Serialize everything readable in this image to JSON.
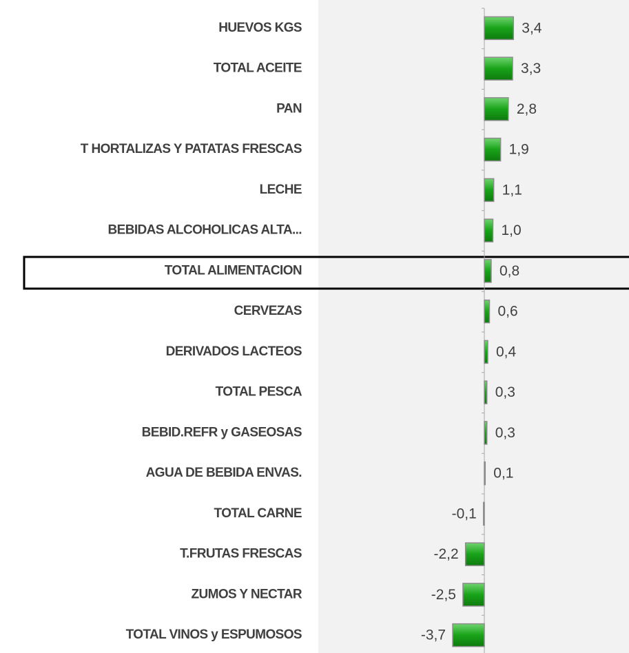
{
  "chart_data": {
    "type": "barh",
    "categories": [
      "HUEVOS KGS",
      "TOTAL ACEITE",
      "PAN",
      "T HORTALIZAS Y PATATAS FRESCAS",
      "LECHE",
      "BEBIDAS ALCOHOLICAS ALTA...",
      "TOTAL ALIMENTACION",
      "CERVEZAS",
      "DERIVADOS LACTEOS",
      "TOTAL PESCA",
      "BEBID.REFR y GASEOSAS",
      "AGUA DE BEBIDA ENVAS.",
      "TOTAL CARNE",
      "T.FRUTAS FRESCAS",
      "ZUMOS Y NECTAR",
      "TOTAL VINOS y ESPUMOSOS"
    ],
    "values": [
      3.4,
      3.3,
      2.8,
      1.9,
      1.1,
      1.0,
      0.8,
      0.6,
      0.4,
      0.3,
      0.3,
      0.1,
      -0.1,
      -2.2,
      -2.5,
      -3.7
    ],
    "value_labels": [
      "3,4",
      "3,3",
      "2,8",
      "1,9",
      "1,1",
      "1,0",
      "0,8",
      "0,6",
      "0,4",
      "0,3",
      "0,3",
      "0,1",
      "-0,1",
      "-2,2",
      "-2,5",
      "-3,7"
    ],
    "color": "#19a319",
    "xlim": [
      -19.4,
      16.9
    ]
  }
}
